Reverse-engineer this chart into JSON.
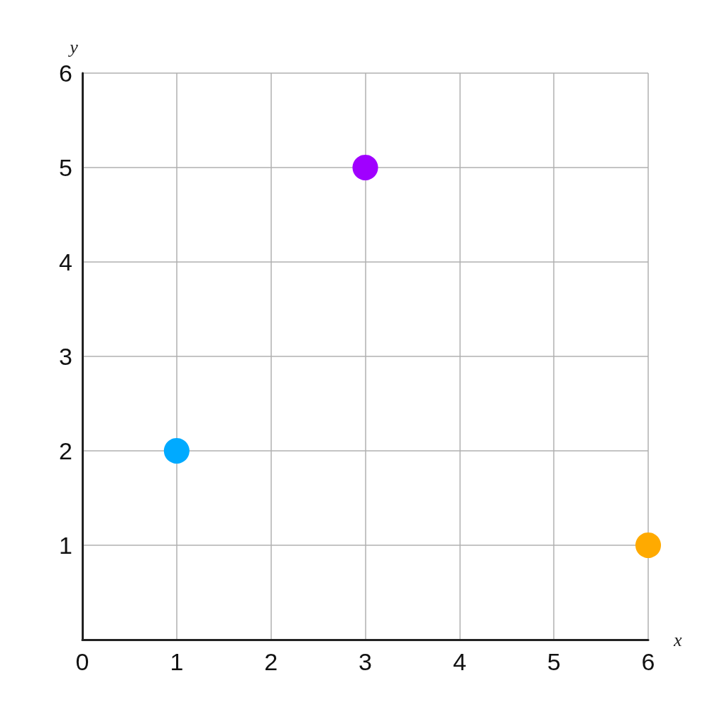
{
  "chart_data": {
    "type": "scatter",
    "xlabel": "x",
    "ylabel": "y",
    "x": [
      1,
      3,
      6
    ],
    "values": [
      2,
      5,
      1
    ],
    "colors": [
      "#00aaff",
      "#a000ff",
      "#ffaa00"
    ],
    "xlim": [
      0,
      6
    ],
    "ylim": [
      0,
      6
    ],
    "xticks": [
      0,
      1,
      2,
      3,
      4,
      5,
      6
    ],
    "yticks": [
      1,
      2,
      3,
      4,
      5,
      6
    ],
    "grid": true,
    "marker": "circle"
  }
}
